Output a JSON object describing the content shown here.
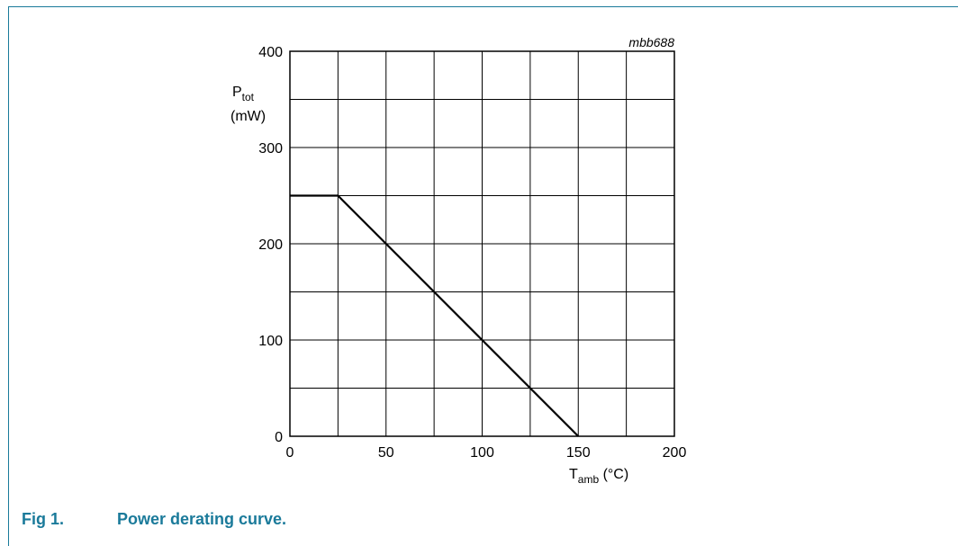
{
  "chart_data": {
    "type": "line",
    "code": "mbb688",
    "ylabel_main": "P",
    "ylabel_sub": "tot",
    "ylabel_unit": "(mW)",
    "xlabel_main": "T",
    "xlabel_sub": "amb",
    "xlabel_unit": " (°C)",
    "xlim": [
      0,
      200
    ],
    "ylim": [
      0,
      400
    ],
    "x_minor_step": 25,
    "y_minor_step": 50,
    "xticks": [
      0,
      50,
      100,
      150,
      200
    ],
    "yticks": [
      0,
      100,
      200,
      300,
      400
    ],
    "grid": true,
    "series": [
      {
        "x": [
          0,
          25,
          150
        ],
        "y": [
          250,
          250,
          0
        ]
      }
    ]
  },
  "caption": {
    "number": "Fig 1.",
    "text": "Power derating curve."
  }
}
